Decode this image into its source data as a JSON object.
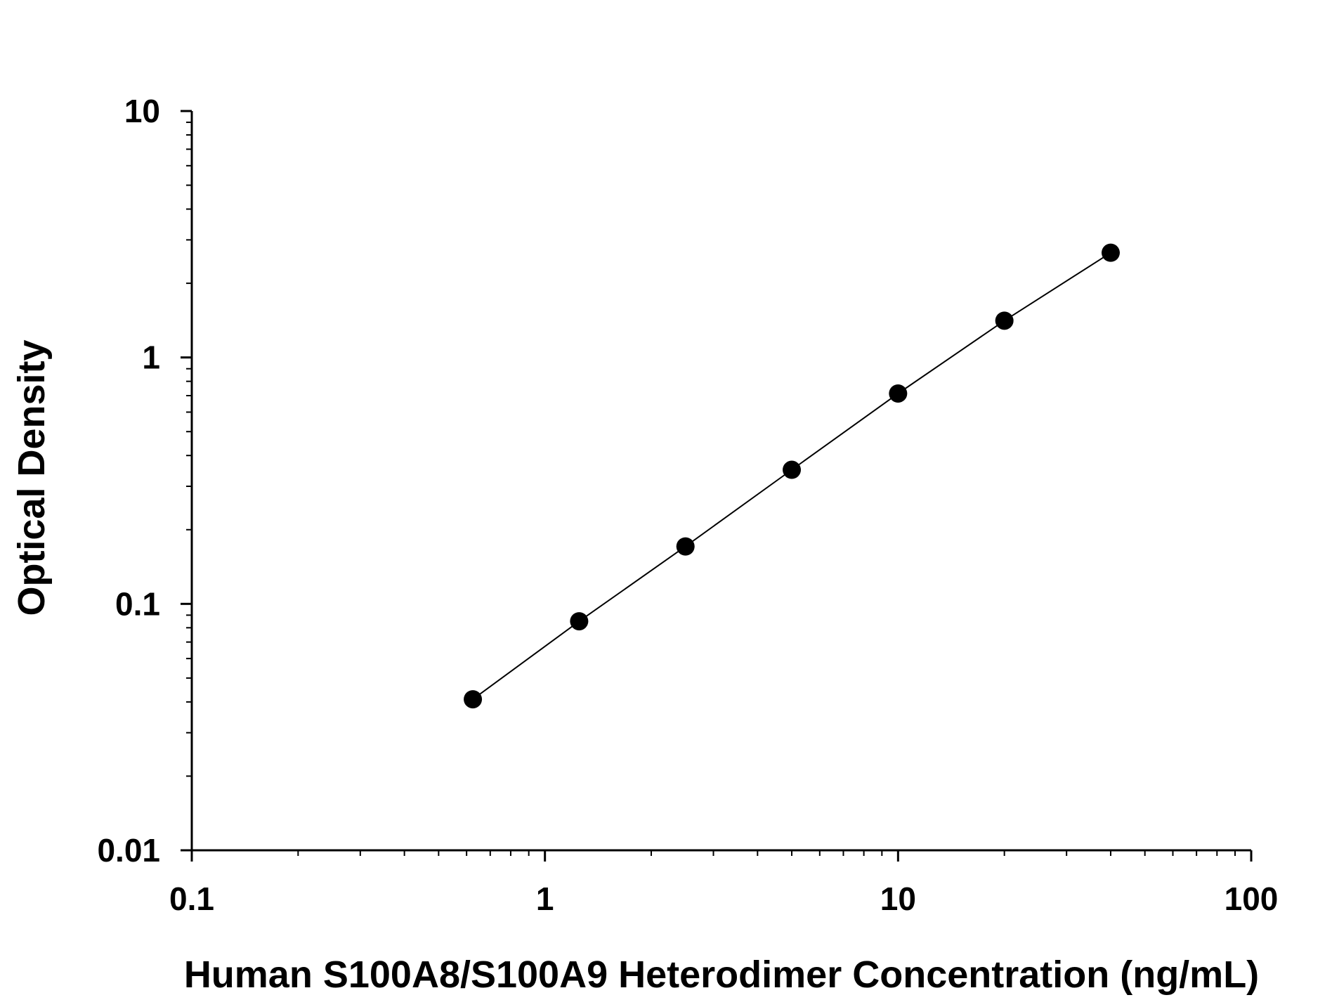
{
  "chart_data": {
    "type": "scatter",
    "title": "",
    "xlabel": "Human S100A8/S100A9 Heterodimer Concentration (ng/mL)",
    "ylabel": "Optical Density",
    "x_scale": "log",
    "y_scale": "log",
    "xlim": [
      0.1,
      100
    ],
    "ylim": [
      0.01,
      10
    ],
    "x_ticks": [
      "0.1",
      "1",
      "10",
      "100"
    ],
    "y_ticks": [
      "0.01",
      "0.1",
      "1",
      "10"
    ],
    "grid": false,
    "legend": "none",
    "colors": {
      "marker": "#000000",
      "line": "#000000",
      "axis": "#000000"
    },
    "series": [
      {
        "x": [
          0.625,
          1.25,
          2.5,
          5,
          10,
          20,
          40
        ],
        "y": [
          0.041,
          0.085,
          0.171,
          0.35,
          0.714,
          1.41,
          2.66
        ],
        "marker": "circle",
        "connected": true
      }
    ]
  }
}
